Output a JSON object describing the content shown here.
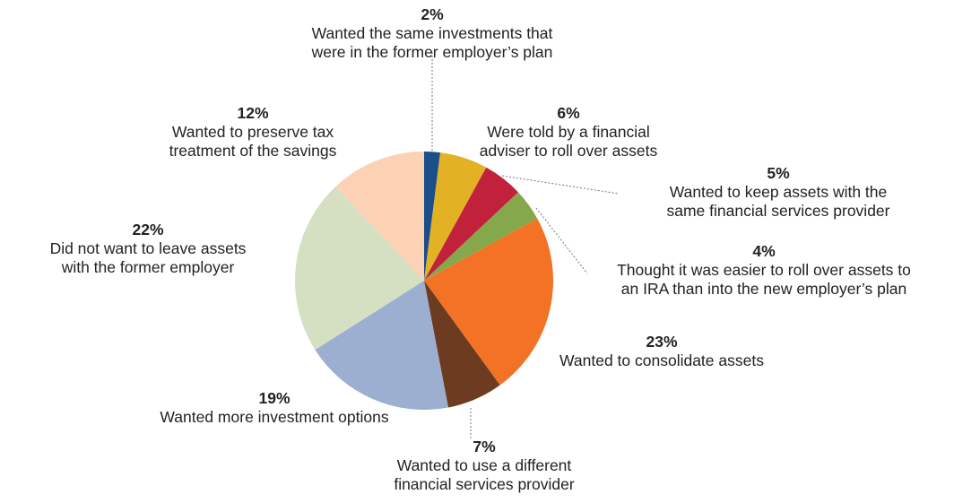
{
  "chart_data": {
    "type": "pie",
    "categories": [
      "Wanted the same investments that were in the former employer’s plan",
      "Were told by a financial adviser to roll over assets",
      "Wanted to keep assets with the same financial services provider",
      "Thought it was easier to roll over assets to an IRA than into the new employer’s plan",
      "Wanted to consolidate assets",
      "Wanted to use a different financial services provider",
      "Wanted more investment options",
      "Did not want to leave assets with the former employer",
      "Wanted to preserve tax treatment of the savings"
    ],
    "values": [
      2,
      6,
      5,
      4,
      23,
      7,
      19,
      22,
      12
    ],
    "value_labels": [
      "2%",
      "6%",
      "5%",
      "4%",
      "23%",
      "7%",
      "19%",
      "22%",
      "12%"
    ],
    "colors": [
      "#1c4f8a",
      "#e2b124",
      "#c1213b",
      "#86a84c",
      "#f37225",
      "#6d3b20",
      "#9cafd1",
      "#d5e0c3",
      "#fdd1b3"
    ]
  }
}
